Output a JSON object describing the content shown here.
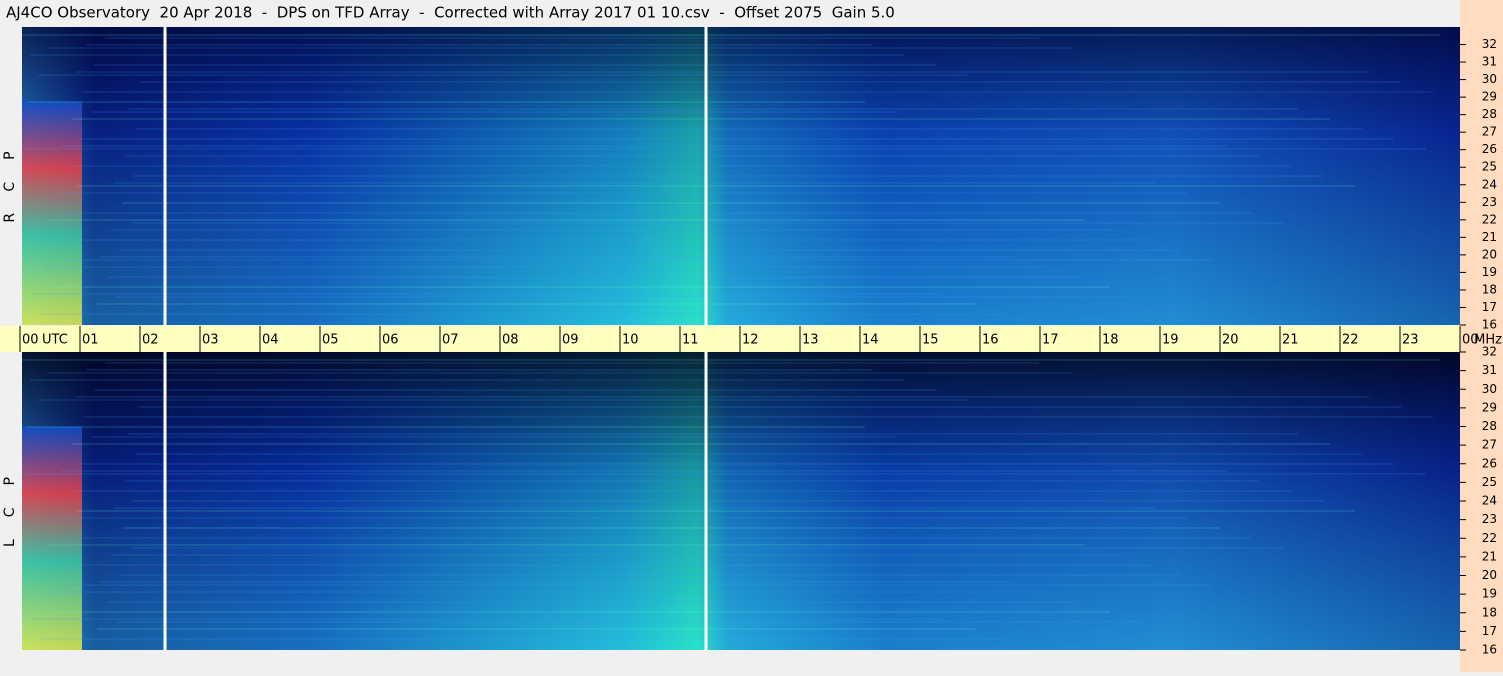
{
  "chart_data": {
    "type": "spectrogram",
    "title": "AJ4CO Observatory  20 Apr 2018  -  DPS on TFD Array  -  Corrected with Array 2017 01 10.csv  -  Offset 2075  Gain 5.0",
    "x_unit": "UTC",
    "y_unit": "MHz",
    "xlim": [
      0,
      24
    ],
    "xticks": [
      {
        "value": 0,
        "label": "00"
      },
      {
        "value": 1,
        "label": "01"
      },
      {
        "value": 2,
        "label": "02"
      },
      {
        "value": 3,
        "label": "03"
      },
      {
        "value": 4,
        "label": "04"
      },
      {
        "value": 5,
        "label": "05"
      },
      {
        "value": 6,
        "label": "06"
      },
      {
        "value": 7,
        "label": "07"
      },
      {
        "value": 8,
        "label": "08"
      },
      {
        "value": 9,
        "label": "09"
      },
      10,
      11,
      12,
      13,
      14,
      15,
      16,
      17,
      18,
      19,
      20,
      21,
      22,
      23,
      {
        "value": 24,
        "label": "00"
      }
    ],
    "panels": [
      {
        "label": "RCP",
        "ylim": [
          16,
          33
        ],
        "yticks": [
          16,
          17,
          18,
          19,
          20,
          21,
          22,
          23,
          24,
          25,
          26,
          27,
          28,
          29,
          30,
          31,
          32
        ]
      },
      {
        "label": "LCP",
        "ylim": [
          16,
          32
        ],
        "yticks": [
          16,
          17,
          18,
          19,
          20,
          21,
          22,
          23,
          24,
          25,
          26,
          27,
          28,
          29,
          30,
          31,
          32
        ]
      }
    ]
  }
}
